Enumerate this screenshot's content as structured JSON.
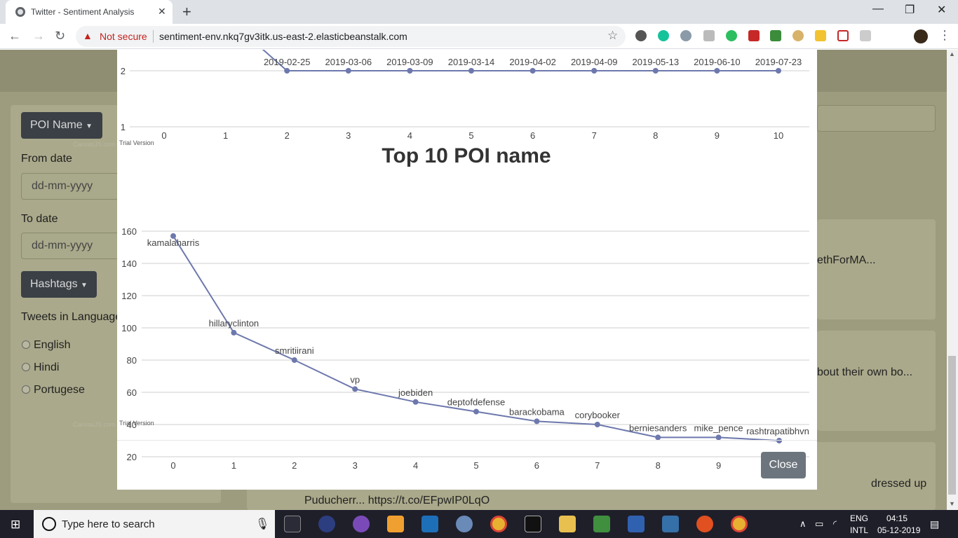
{
  "browser": {
    "tab_title": "Twitter - Sentiment Analysis",
    "tab_close": "✕",
    "new_tab": "+",
    "security_label": "Not secure",
    "url": "sentiment-env.nkq7gv3itk.us-east-2.elasticbeanstalk.com",
    "win_minimize": "—",
    "win_restore": "❐",
    "win_close": "✕"
  },
  "sidebar": {
    "poi_button": "POI Name",
    "from_date_label": "From date",
    "from_date_placeholder": "dd-mm-yyyy",
    "to_date_label": "To date",
    "to_date_placeholder": "dd-mm-yyyy",
    "hashtags_button": "Hashtags",
    "language_label": "Tweets in Language",
    "languages": [
      "English",
      "Hindi",
      "Portugese"
    ],
    "watermark": "CanvasJS.com"
  },
  "background_cards": {
    "card1_text": "ethForMA...",
    "card2_text": "bout their own bo...",
    "card3_text_right": "dressed up",
    "card3_text_bottom": "Puducherr... https://t.co/EFpwIP0LqO"
  },
  "modal": {
    "close_button": "Close",
    "trial_label": "Trial Version",
    "top_chart": {
      "type": "line",
      "y_ticks": [
        "2",
        "1"
      ],
      "x": [
        0,
        1,
        2,
        3,
        4,
        5,
        6,
        7,
        8,
        9,
        10
      ],
      "x_labels": [
        "0",
        "1",
        "2",
        "3",
        "4",
        "5",
        "6",
        "7",
        "8",
        "9",
        "10"
      ],
      "values": [
        null,
        null,
        2,
        2,
        2,
        2,
        2,
        2,
        2,
        2,
        2
      ],
      "point_labels": [
        "",
        "",
        "2019-02-25",
        "2019-03-06",
        "2019-03-09",
        "2019-03-14",
        "2019-04-02",
        "2019-04-09",
        "2019-05-13",
        "2019-06-10",
        "2019-07-23"
      ]
    },
    "chart_data": {
      "type": "line",
      "title": "Top 10 POI name",
      "x": [
        0,
        1,
        2,
        3,
        4,
        5,
        6,
        7,
        8,
        9,
        10
      ],
      "x_labels": [
        "0",
        "1",
        "2",
        "3",
        "4",
        "5",
        "6",
        "7",
        "8",
        "9",
        "10"
      ],
      "values": [
        157,
        97,
        80,
        62,
        54,
        48,
        42,
        40,
        32,
        32,
        30
      ],
      "point_labels": [
        "kamalaharris",
        "hillaryclinton",
        "smritiirani",
        "vp",
        "joebiden",
        "deptofdefense",
        "barackobama",
        "corybooker",
        "berniesanders",
        "mike_pence",
        "rashtrapatibhvn"
      ],
      "y_ticks": [
        "160",
        "140",
        "120",
        "100",
        "80",
        "60",
        "40",
        "20"
      ],
      "ylim": [
        20,
        160
      ],
      "grid": true,
      "line_color": "#6d78ad"
    }
  },
  "taskbar": {
    "search_placeholder": "Type here to search",
    "lang_top": "ENG",
    "lang_bottom": "INTL",
    "time": "04:15",
    "date": "05-12-2019"
  }
}
